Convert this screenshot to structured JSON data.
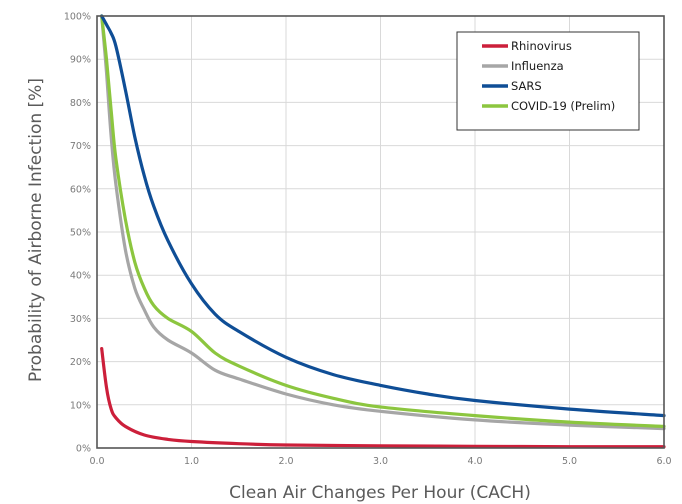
{
  "chart_data": {
    "type": "line",
    "title": "",
    "xlabel": "Clean Air Changes Per Hour (CACH)",
    "ylabel": "Probability of Airborne Infection [%]",
    "xlim": [
      0,
      6.0
    ],
    "ylim": [
      0,
      100
    ],
    "x_ticks": [
      "0.0",
      "1.0",
      "2.0",
      "3.0",
      "4.0",
      "5.0",
      "6.0"
    ],
    "y_ticks": [
      "0%",
      "10%",
      "20%",
      "30%",
      "40%",
      "50%",
      "60%",
      "70%",
      "80%",
      "90%",
      "100%"
    ],
    "grid": true,
    "legend_position": "top-right",
    "series": [
      {
        "name": "Rhinovirus",
        "color": "#cc1f3a",
        "x": [
          0.05,
          0.1,
          0.15,
          0.2,
          0.3,
          0.5,
          0.75,
          1.0,
          1.5,
          2.0,
          3.0,
          4.0,
          5.0,
          6.0
        ],
        "y": [
          23.0,
          14.0,
          9.0,
          7.0,
          5.0,
          3.0,
          2.0,
          1.5,
          1.0,
          0.7,
          0.5,
          0.4,
          0.3,
          0.3
        ]
      },
      {
        "name": "Influenza",
        "color": "#a6a6a6",
        "x": [
          0.05,
          0.1,
          0.15,
          0.2,
          0.3,
          0.4,
          0.5,
          0.6,
          0.75,
          1.0,
          1.25,
          1.5,
          2.0,
          2.5,
          3.0,
          4.0,
          5.0,
          6.0
        ],
        "y": [
          100,
          87,
          72,
          61,
          46,
          37,
          32,
          28,
          25,
          22,
          18,
          16,
          12.5,
          10,
          8.5,
          6.5,
          5.3,
          4.5
        ]
      },
      {
        "name": "SARS",
        "color": "#0f4e96",
        "x": [
          0.05,
          0.1,
          0.15,
          0.2,
          0.3,
          0.4,
          0.5,
          0.6,
          0.75,
          1.0,
          1.25,
          1.5,
          2.0,
          2.5,
          3.0,
          3.5,
          4.0,
          5.0,
          6.0
        ],
        "y": [
          100,
          98,
          96,
          93,
          83,
          72,
          63,
          56,
          48,
          38,
          31,
          27,
          21,
          17,
          14.5,
          12.5,
          11,
          9,
          7.5
        ]
      },
      {
        "name": "COVID-19 (Prelim)",
        "color": "#8cc63f",
        "x": [
          0.05,
          0.1,
          0.15,
          0.2,
          0.3,
          0.4,
          0.5,
          0.6,
          0.75,
          1.0,
          1.25,
          1.5,
          2.0,
          2.5,
          3.0,
          4.0,
          5.0,
          6.0
        ],
        "y": [
          100,
          90,
          78,
          67,
          53,
          43,
          37,
          33,
          30,
          27,
          22,
          19,
          14.5,
          11.5,
          9.5,
          7.5,
          6,
          5
        ]
      }
    ]
  }
}
